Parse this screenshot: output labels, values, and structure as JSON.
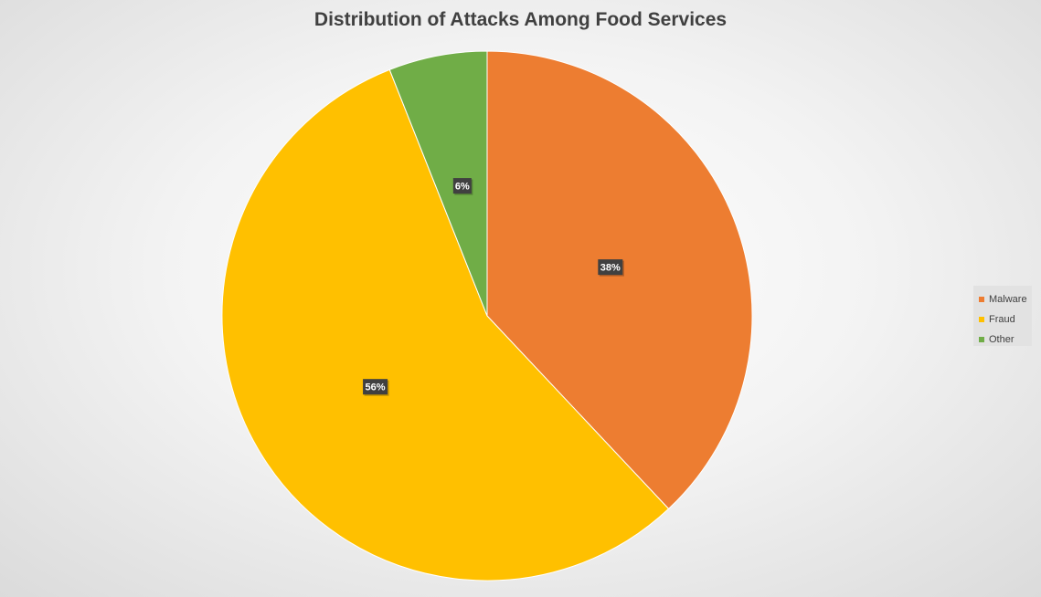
{
  "chart_data": {
    "type": "pie",
    "title": "Distribution of Attacks Among Food Services",
    "categories": [
      "Malware",
      "Fraud",
      "Other"
    ],
    "values": [
      38,
      56,
      6
    ],
    "data_labels": [
      "38%",
      "56%",
      "6%"
    ],
    "colors": [
      "#ED7D31",
      "#FFC000",
      "#70AD47"
    ],
    "legend_position": "right"
  }
}
